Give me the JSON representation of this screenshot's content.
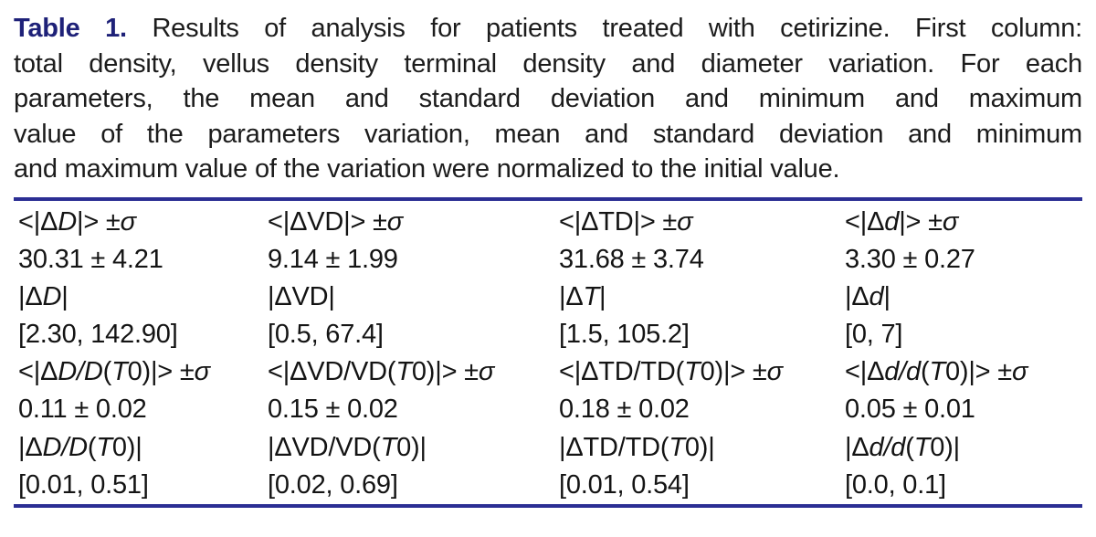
{
  "colors": {
    "accent": "#1e2178",
    "rule": "#2b2e94",
    "text": "#1c1c1c"
  },
  "caption": {
    "label": "Table 1.",
    "lines": [
      "Results of analysis for patients treated with cetirizine. First column:",
      "total density, vellus density terminal density and diameter variation. For each",
      "parameters, the mean and standard deviation and minimum and maximum",
      "value of the parameters variation, mean and standard deviation and minimum",
      "and maximum value of the variation were normalized to the initial value."
    ]
  },
  "table": {
    "columns": [
      {
        "name": "total-density",
        "rows": [
          [
            [
              "<|Δ",
              "n"
            ],
            [
              "D",
              "i"
            ],
            [
              "|> ±",
              "n"
            ],
            [
              "σ",
              "i"
            ]
          ],
          [
            [
              "30.31 ± 4.21",
              "n"
            ]
          ],
          [
            [
              "|Δ",
              "n"
            ],
            [
              "D",
              "i"
            ],
            [
              "|",
              "n"
            ]
          ],
          [
            [
              "[2.30, 142.90]",
              "n"
            ]
          ],
          [
            [
              "<|Δ",
              "n"
            ],
            [
              "D/D",
              "i"
            ],
            [
              "(",
              "n"
            ],
            [
              "T",
              "i"
            ],
            [
              "0)|> ±",
              "n"
            ],
            [
              "σ",
              "i"
            ]
          ],
          [
            [
              "0.11 ± 0.02",
              "n"
            ]
          ],
          [
            [
              "|Δ",
              "n"
            ],
            [
              "D/D",
              "i"
            ],
            [
              "(",
              "n"
            ],
            [
              "T",
              "i"
            ],
            [
              "0)|",
              "n"
            ]
          ],
          [
            [
              "[0.01, 0.51]",
              "n"
            ]
          ]
        ]
      },
      {
        "name": "vellus-density",
        "rows": [
          [
            [
              "<|ΔVD|> ±",
              "n"
            ],
            [
              "σ",
              "i"
            ]
          ],
          [
            [
              "9.14 ± 1.99",
              "n"
            ]
          ],
          [
            [
              "|ΔVD|",
              "n"
            ]
          ],
          [
            [
              "[0.5, 67.4]",
              "n"
            ]
          ],
          [
            [
              "<|ΔVD/VD(",
              "n"
            ],
            [
              "T",
              "i"
            ],
            [
              "0)|> ±",
              "n"
            ],
            [
              "σ",
              "i"
            ]
          ],
          [
            [
              "0.15 ± 0.02",
              "n"
            ]
          ],
          [
            [
              "|ΔVD/VD(",
              "n"
            ],
            [
              "T",
              "i"
            ],
            [
              "0)|",
              "n"
            ]
          ],
          [
            [
              "[0.02, 0.69]",
              "n"
            ]
          ]
        ]
      },
      {
        "name": "terminal-density",
        "rows": [
          [
            [
              "<|ΔTD|> ±",
              "n"
            ],
            [
              "σ",
              "i"
            ]
          ],
          [
            [
              "31.68 ± 3.74",
              "n"
            ]
          ],
          [
            [
              "|Δ",
              "n"
            ],
            [
              "T",
              "i"
            ],
            [
              "|",
              "n"
            ]
          ],
          [
            [
              "[1.5, 105.2]",
              "n"
            ]
          ],
          [
            [
              "<|ΔTD/TD(",
              "n"
            ],
            [
              "T",
              "i"
            ],
            [
              "0)|> ±",
              "n"
            ],
            [
              "σ",
              "i"
            ]
          ],
          [
            [
              "0.18 ± 0.02",
              "n"
            ]
          ],
          [
            [
              "|ΔTD/TD(",
              "n"
            ],
            [
              "T",
              "i"
            ],
            [
              "0)|",
              "n"
            ]
          ],
          [
            [
              "[0.01, 0.54]",
              "n"
            ]
          ]
        ]
      },
      {
        "name": "diameter",
        "rows": [
          [
            [
              "<|Δ",
              "n"
            ],
            [
              "d",
              "i"
            ],
            [
              "|> ±",
              "n"
            ],
            [
              "σ",
              "i"
            ]
          ],
          [
            [
              "3.30 ± 0.27",
              "n"
            ]
          ],
          [
            [
              "|Δ",
              "n"
            ],
            [
              "d",
              "i"
            ],
            [
              "|",
              "n"
            ]
          ],
          [
            [
              "[0, 7]",
              "n"
            ]
          ],
          [
            [
              "<|Δ",
              "n"
            ],
            [
              "d/d",
              "i"
            ],
            [
              "(",
              "n"
            ],
            [
              "T",
              "i"
            ],
            [
              "0)|> ±",
              "n"
            ],
            [
              "σ",
              "i"
            ]
          ],
          [
            [
              "0.05 ± 0.01",
              "n"
            ]
          ],
          [
            [
              "|Δ",
              "n"
            ],
            [
              "d/d",
              "i"
            ],
            [
              "(",
              "n"
            ],
            [
              "T",
              "i"
            ],
            [
              "0)|",
              "n"
            ]
          ],
          [
            [
              "[0.0, 0.1]",
              "n"
            ]
          ]
        ]
      }
    ]
  }
}
